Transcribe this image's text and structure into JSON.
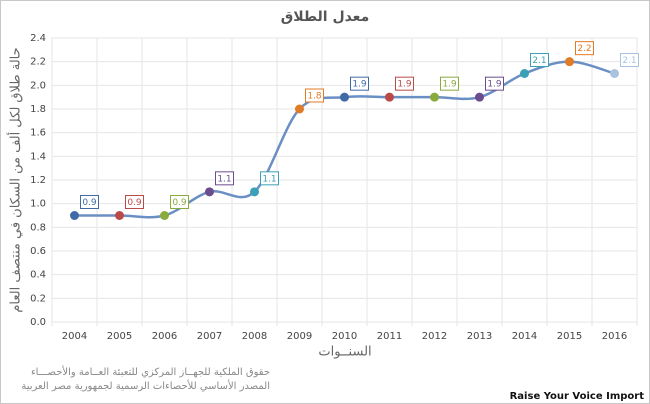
{
  "chart_data": {
    "type": "line",
    "title": "معدل الطلاق",
    "y_label": "حالة طلاق لكل ألف من السكان في منتصف العام",
    "x_label": "السنــوات",
    "categories": [
      "2004",
      "2005",
      "2006",
      "2007",
      "2008",
      "2009",
      "2010",
      "2011",
      "2012",
      "2013",
      "2014",
      "2015",
      "2016"
    ],
    "series": [
      {
        "color": "#6a8fc4",
        "values": [
          0.9,
          0.9,
          0.9,
          1.1,
          1.1,
          1.8,
          1.9,
          1.9,
          1.9,
          1.9,
          2.1,
          2.2,
          2.1
        ]
      }
    ],
    "point_colors": [
      "#3f6aa6",
      "#b94a48",
      "#8aaa3c",
      "#6b4c8c",
      "#3aa0b5",
      "#e07b26",
      "#3f6aa6",
      "#b94a48",
      "#8aaa3c",
      "#6b4c8c",
      "#3aa0b5",
      "#e07b26",
      "#a8c2e0"
    ],
    "ylim": [
      0,
      2.4
    ],
    "yticks": [
      {
        "value": 0,
        "label": "0.0"
      },
      0.2,
      0.4,
      0.6,
      0.8,
      {
        "value": 1,
        "label": "1.0"
      },
      1.2,
      1.4,
      1.6,
      1.8,
      {
        "value": 2,
        "label": "2.0"
      },
      2.2,
      2.4
    ],
    "grid": true,
    "notes": [
      "حقوق الملكية للجهــاز المركزي للتعبئة العــامة والأحصـــاء",
      "المصدر الأساسي للأحصاءات الرسمية لجمهورية مصر العربية"
    ],
    "watermark": "Raise Your Voice Import"
  }
}
